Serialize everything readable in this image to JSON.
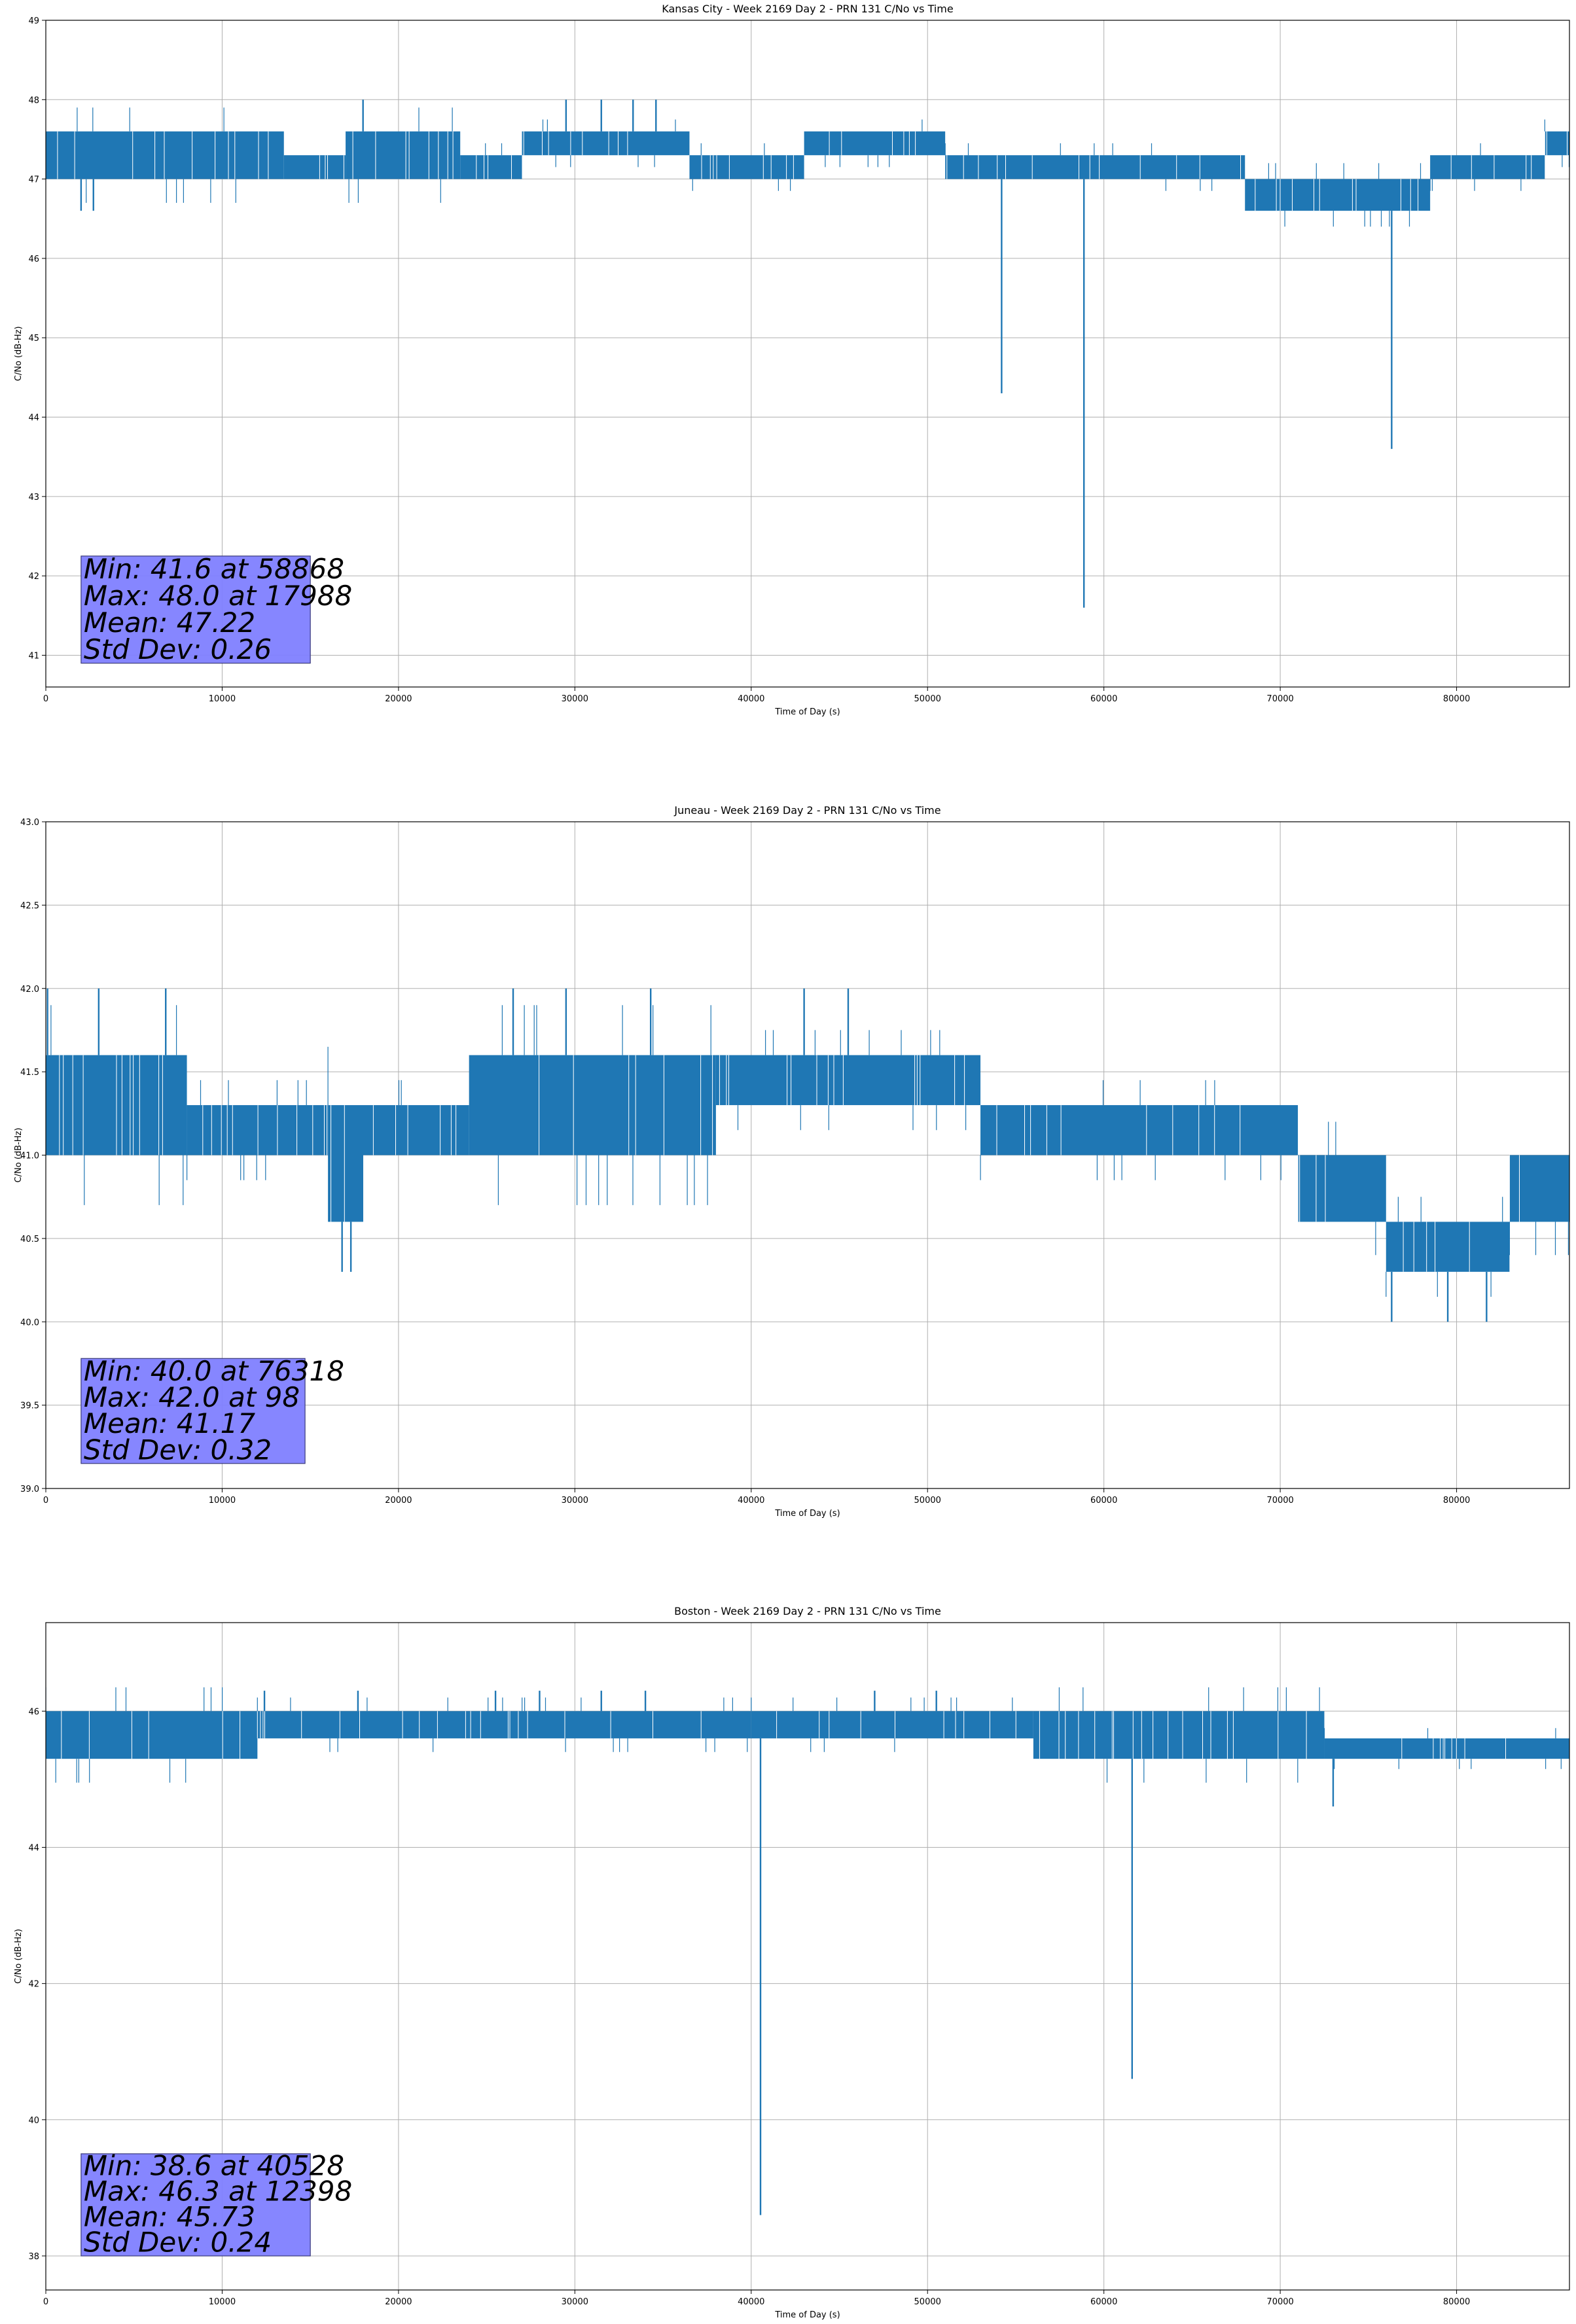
{
  "colors": {
    "series": "#1f77b4",
    "grid": "#b0b0b0",
    "stats_box_fill": "#8080ff",
    "stats_box_edge": "#3a3a7a",
    "axes": "#000000"
  },
  "chart_data": [
    {
      "type": "line",
      "title": "Kansas City - Week 2169 Day 2 - PRN 131 C/No vs Time",
      "xlabel": "Time of Day (s)",
      "ylabel": "C/No (dB-Hz)",
      "xlim": [
        0,
        86400
      ],
      "ylim": [
        40.6,
        49
      ],
      "xticks": [
        0,
        10000,
        20000,
        30000,
        40000,
        50000,
        60000,
        70000,
        80000
      ],
      "yticks": [
        41,
        42,
        43,
        44,
        45,
        46,
        47,
        48,
        49
      ],
      "ytick_decimals": 0,
      "grid": true,
      "band_segments": [
        {
          "x": [
            0,
            13500
          ],
          "low": 47.0,
          "high": 47.6
        },
        {
          "x": [
            13500,
            17000
          ],
          "low": 47.0,
          "high": 47.3
        },
        {
          "x": [
            17000,
            23500
          ],
          "low": 47.0,
          "high": 47.6
        },
        {
          "x": [
            23500,
            27000
          ],
          "low": 47.0,
          "high": 47.3
        },
        {
          "x": [
            27000,
            36500
          ],
          "low": 47.3,
          "high": 47.6
        },
        {
          "x": [
            36500,
            43000
          ],
          "low": 47.0,
          "high": 47.3
        },
        {
          "x": [
            43000,
            51000
          ],
          "low": 47.3,
          "high": 47.6
        },
        {
          "x": [
            51000,
            68000
          ],
          "low": 47.0,
          "high": 47.3
        },
        {
          "x": [
            68000,
            78500
          ],
          "low": 46.6,
          "high": 47.0
        },
        {
          "x": [
            78500,
            85000
          ],
          "low": 47.0,
          "high": 47.3
        },
        {
          "x": [
            85000,
            86400
          ],
          "low": 47.3,
          "high": 47.6
        }
      ],
      "spikes": [
        {
          "x": 54200,
          "y": 44.3
        },
        {
          "x": 58868,
          "y": 41.6
        },
        {
          "x": 76318,
          "y": 43.6
        },
        {
          "x": 17988,
          "y": 48.0
        },
        {
          "x": 29500,
          "y": 48.0
        },
        {
          "x": 31500,
          "y": 48.0
        },
        {
          "x": 33300,
          "y": 48.0
        },
        {
          "x": 34600,
          "y": 48.0
        },
        {
          "x": 2000,
          "y": 46.6
        },
        {
          "x": 2700,
          "y": 46.6
        }
      ],
      "stats": {
        "lines": [
          "Min: 41.6 at 58868",
          "Max: 48.0 at 17988",
          "Mean: 47.22",
          "Std Dev: 0.26"
        ],
        "box_x": [
          2000,
          15000
        ],
        "box_y": [
          40.9,
          42.25
        ]
      }
    },
    {
      "type": "line",
      "title": "Juneau - Week 2169 Day 2 - PRN 131 C/No vs Time",
      "xlabel": "Time of Day (s)",
      "ylabel": "C/No (dB-Hz)",
      "xlim": [
        0,
        86400
      ],
      "ylim": [
        39.0,
        43.0
      ],
      "xticks": [
        0,
        10000,
        20000,
        30000,
        40000,
        50000,
        60000,
        70000,
        80000
      ],
      "yticks": [
        39.0,
        39.5,
        40.0,
        40.5,
        41.0,
        41.5,
        42.0,
        42.5,
        43.0
      ],
      "ytick_decimals": 1,
      "grid": true,
      "band_segments": [
        {
          "x": [
            0,
            8000
          ],
          "low": 41.0,
          "high": 41.6
        },
        {
          "x": [
            8000,
            16000
          ],
          "low": 41.0,
          "high": 41.3
        },
        {
          "x": [
            16000,
            18000
          ],
          "low": 40.6,
          "high": 41.3
        },
        {
          "x": [
            18000,
            24000
          ],
          "low": 41.0,
          "high": 41.3
        },
        {
          "x": [
            24000,
            38000
          ],
          "low": 41.0,
          "high": 41.6
        },
        {
          "x": [
            38000,
            53000
          ],
          "low": 41.3,
          "high": 41.6
        },
        {
          "x": [
            53000,
            71000
          ],
          "low": 41.0,
          "high": 41.3
        },
        {
          "x": [
            71000,
            76000
          ],
          "low": 40.6,
          "high": 41.0
        },
        {
          "x": [
            76000,
            83000
          ],
          "low": 40.3,
          "high": 40.6
        },
        {
          "x": [
            83000,
            86400
          ],
          "low": 40.6,
          "high": 41.0
        }
      ],
      "spikes": [
        {
          "x": 76318,
          "y": 40.0
        },
        {
          "x": 98,
          "y": 42.0
        },
        {
          "x": 3000,
          "y": 42.0
        },
        {
          "x": 6800,
          "y": 42.0
        },
        {
          "x": 26500,
          "y": 42.0
        },
        {
          "x": 29500,
          "y": 42.0
        },
        {
          "x": 34300,
          "y": 42.0
        },
        {
          "x": 43000,
          "y": 42.0
        },
        {
          "x": 45500,
          "y": 42.0
        },
        {
          "x": 16800,
          "y": 40.3
        },
        {
          "x": 17300,
          "y": 40.3
        },
        {
          "x": 79500,
          "y": 40.0
        },
        {
          "x": 81700,
          "y": 40.0
        }
      ],
      "stats": {
        "lines": [
          "Min: 40.0 at 76318",
          "Max: 42.0 at 98",
          "Mean: 41.17",
          "Std Dev: 0.32"
        ],
        "box_x": [
          2000,
          14700
        ],
        "box_y": [
          39.15,
          39.78
        ]
      }
    },
    {
      "type": "line",
      "title": "Boston - Week 2169 Day 2 - PRN 131 C/No vs Time",
      "xlabel": "Time of Day (s)",
      "ylabel": "C/No (dB-Hz)",
      "xlim": [
        0,
        86400
      ],
      "ylim": [
        37.5,
        47.3
      ],
      "xticks": [
        0,
        10000,
        20000,
        30000,
        40000,
        50000,
        60000,
        70000,
        80000
      ],
      "yticks": [
        38,
        40,
        42,
        44,
        46
      ],
      "ytick_decimals": 0,
      "grid": true,
      "band_segments": [
        {
          "x": [
            0,
            12000
          ],
          "low": 45.3,
          "high": 46.0
        },
        {
          "x": [
            12000,
            40000
          ],
          "low": 45.6,
          "high": 46.0
        },
        {
          "x": [
            40000,
            56000
          ],
          "low": 45.6,
          "high": 46.0
        },
        {
          "x": [
            56000,
            72500
          ],
          "low": 45.3,
          "high": 46.0
        },
        {
          "x": [
            72500,
            86400
          ],
          "low": 45.3,
          "high": 45.6
        }
      ],
      "spikes": [
        {
          "x": 40528,
          "y": 38.6
        },
        {
          "x": 61600,
          "y": 40.6
        },
        {
          "x": 73000,
          "y": 44.6
        },
        {
          "x": 12398,
          "y": 46.3
        },
        {
          "x": 17700,
          "y": 46.3
        },
        {
          "x": 25500,
          "y": 46.3
        },
        {
          "x": 28000,
          "y": 46.3
        },
        {
          "x": 31500,
          "y": 46.3
        },
        {
          "x": 34000,
          "y": 46.3
        },
        {
          "x": 47000,
          "y": 46.3
        },
        {
          "x": 50500,
          "y": 46.3
        }
      ],
      "stats": {
        "lines": [
          "Min: 38.6 at 40528",
          "Max: 46.3 at 12398",
          "Mean: 45.73",
          "Std Dev: 0.24"
        ],
        "box_x": [
          2000,
          15000
        ],
        "box_y": [
          38.0,
          39.5
        ]
      }
    }
  ]
}
